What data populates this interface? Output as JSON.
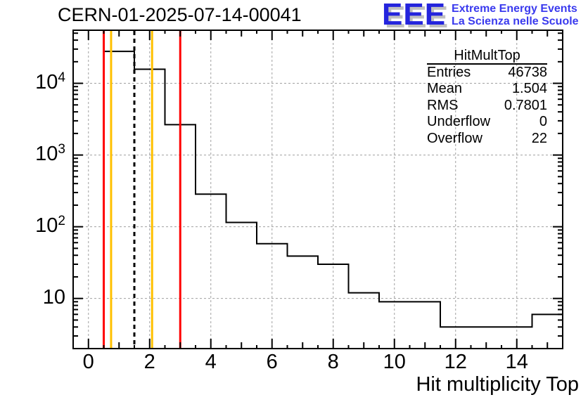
{
  "title": "CERN-01-2025-07-14-00041",
  "logo": {
    "acronym": "EEE",
    "line1": "Extreme Energy Events",
    "line2": "La Scienza nelle Scuole",
    "color": "#2424dd",
    "lines_color": "#3a3aee",
    "shadow_color": "#c0c0c0"
  },
  "stats_box": {
    "title": "HitMultTop",
    "rows": [
      {
        "label": "Entries",
        "value": "46738"
      },
      {
        "label": "Mean",
        "value": "1.504"
      },
      {
        "label": "RMS",
        "value": "0.7801"
      },
      {
        "label": "Underflow",
        "value": "0"
      },
      {
        "label": "Overflow",
        "value": "22"
      }
    ]
  },
  "chart_data": {
    "type": "bar",
    "style": "root-step-histogram",
    "title": "CERN-01-2025-07-14-00041",
    "xlabel": "Hit multiplicity Top",
    "ylabel": "",
    "yscale": "log",
    "xlim": [
      -0.5,
      15.5
    ],
    "ylim": [
      2,
      55000
    ],
    "bin_width": 1,
    "bin_centers": [
      1,
      2,
      3,
      4,
      5,
      6,
      7,
      8,
      9,
      10,
      11,
      12,
      13,
      14,
      15
    ],
    "values": [
      27900,
      15700,
      2650,
      285,
      115,
      58,
      39,
      30,
      12,
      9,
      9,
      4,
      4,
      4,
      6
    ],
    "line_color": "#000000",
    "grid": {
      "on": true,
      "color": "#a0a0a0",
      "dash": "3,3"
    },
    "x_ticks": {
      "values": [
        0,
        2,
        4,
        6,
        8,
        10,
        12,
        14
      ],
      "labels": [
        "0",
        "2",
        "4",
        "6",
        "8",
        "10",
        "12",
        "14"
      ]
    },
    "y_ticks": {
      "values": [
        10,
        100,
        1000,
        10000
      ],
      "labels": [
        {
          "base": "10",
          "exp": ""
        },
        {
          "base": "10",
          "exp": "2"
        },
        {
          "base": "10",
          "exp": "3"
        },
        {
          "base": "10",
          "exp": "4"
        }
      ]
    },
    "marker_lines": [
      {
        "x": 0.5,
        "color": "#ff0000",
        "style": "solid"
      },
      {
        "x": 0.74,
        "color": "#ffc000",
        "style": "solid"
      },
      {
        "x": 1.5,
        "color": "#000000",
        "style": "dashed"
      },
      {
        "x": 2.08,
        "color": "#ffc000",
        "style": "solid"
      },
      {
        "x": 3.0,
        "color": "#ff0000",
        "style": "solid"
      }
    ],
    "legend": {
      "visible": false
    }
  }
}
